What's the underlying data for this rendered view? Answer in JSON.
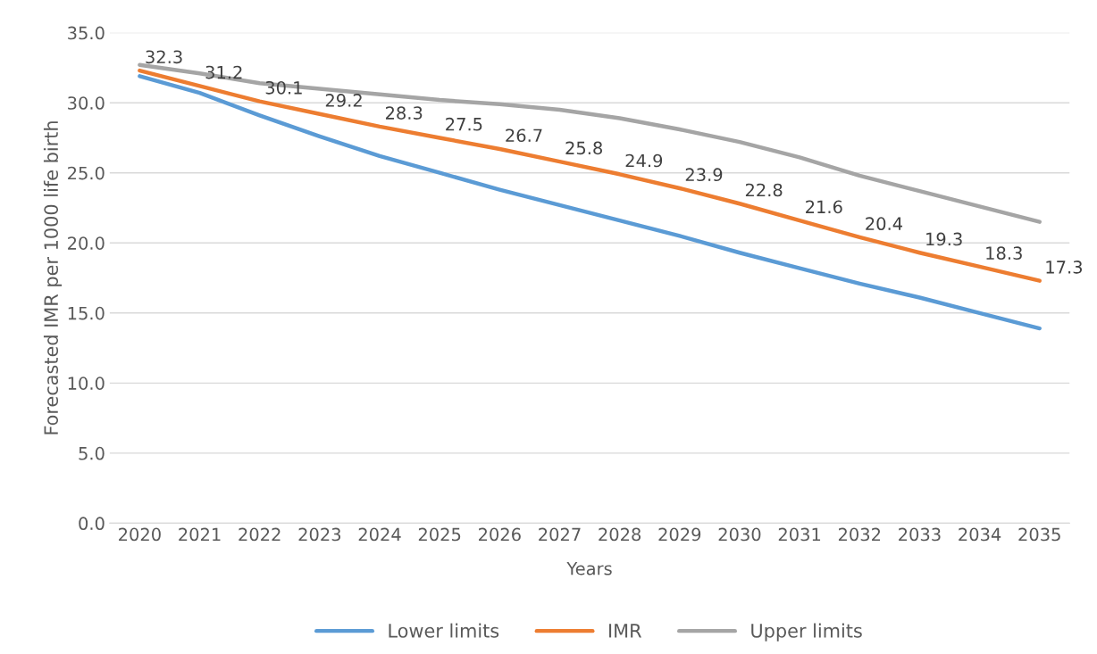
{
  "chart_data": {
    "type": "line",
    "xlabel": "Years",
    "ylabel": "Forecasted IMR per 1000 life birth",
    "categories": [
      "2020",
      "2021",
      "2022",
      "2023",
      "2024",
      "2025",
      "2026",
      "2027",
      "2028",
      "2029",
      "2030",
      "2031",
      "2032",
      "2033",
      "2034",
      "2035"
    ],
    "series": [
      {
        "name": "Lower limits",
        "color": "#5b9bd5",
        "values": [
          31.9,
          30.7,
          29.1,
          27.6,
          26.2,
          25.0,
          23.8,
          22.7,
          21.6,
          20.5,
          19.3,
          18.2,
          17.1,
          16.1,
          15.0,
          13.9
        ]
      },
      {
        "name": "IMR",
        "color": "#ed7d31",
        "values": [
          32.3,
          31.2,
          30.1,
          29.2,
          28.3,
          27.5,
          26.7,
          25.8,
          24.9,
          23.9,
          22.8,
          21.6,
          20.4,
          19.3,
          18.3,
          17.3
        ],
        "value_labels": [
          "32.3",
          "31.2",
          "30.1",
          "29.2",
          "28.3",
          "27.5",
          "26.7",
          "25.8",
          "24.9",
          "23.9",
          "22.8",
          "21.6",
          "20.4",
          "19.3",
          "18.3",
          "17.3"
        ]
      },
      {
        "name": "Upper limits",
        "color": "#a5a5a5",
        "values": [
          32.7,
          32.1,
          31.4,
          31.0,
          30.6,
          30.2,
          29.9,
          29.5,
          28.9,
          28.1,
          27.2,
          26.1,
          24.8,
          23.7,
          22.6,
          21.5
        ]
      }
    ],
    "ylim": [
      0,
      35
    ],
    "yticks": [
      {
        "value": 0,
        "label": "0.0"
      },
      {
        "value": 5,
        "label": "5.0"
      },
      {
        "value": 10,
        "label": "10.0"
      },
      {
        "value": 15,
        "label": "15.0"
      },
      {
        "value": 20,
        "label": "20.0"
      },
      {
        "value": 25,
        "label": "25.0"
      },
      {
        "value": 30,
        "label": "30.0"
      },
      {
        "value": 35,
        "label": "35.0"
      }
    ],
    "grid": "y",
    "legend": "bottom",
    "marker": "none",
    "line_style": "solid"
  }
}
